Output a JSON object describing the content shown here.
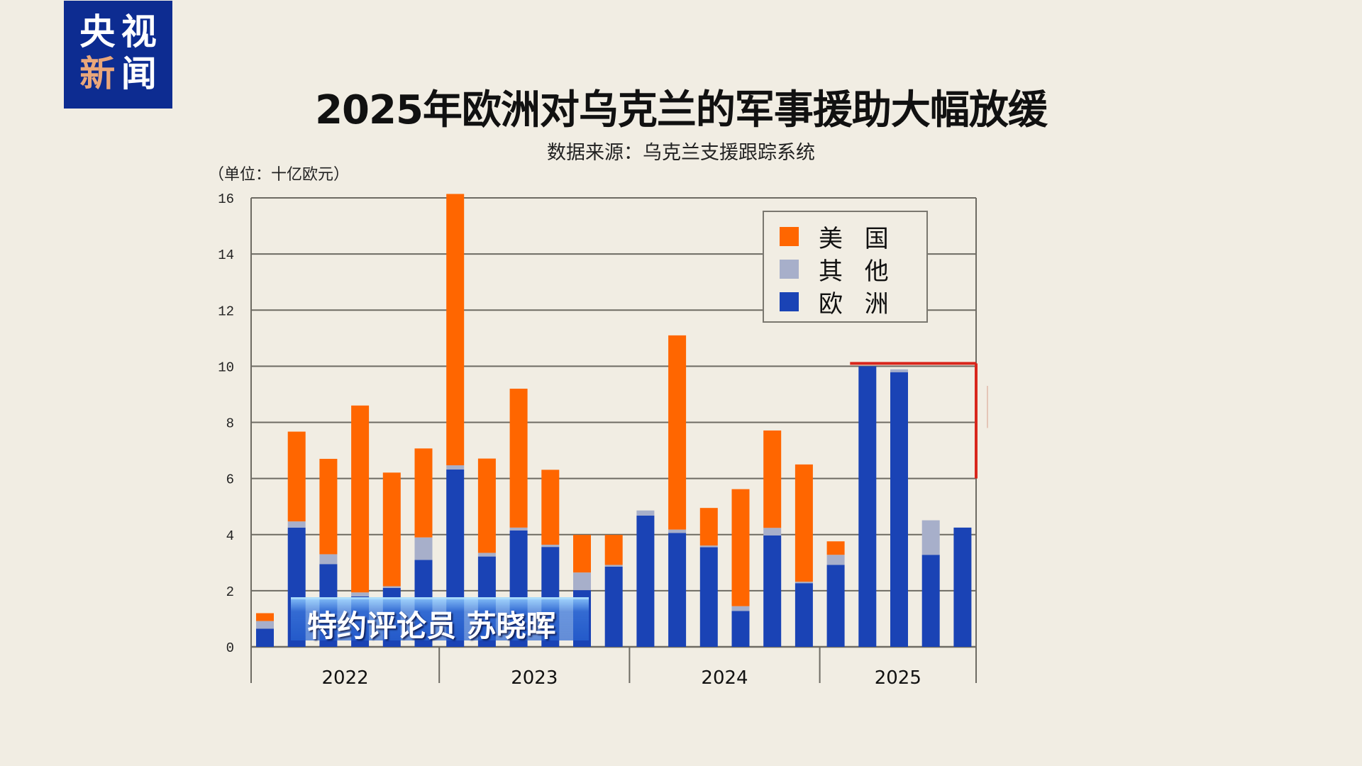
{
  "logo": {
    "line1": [
      "央",
      "视"
    ],
    "line2": [
      "新",
      "闻"
    ]
  },
  "caption": {
    "text": "特约评论员 苏晓晖"
  },
  "colors": {
    "us": "#ff6600",
    "other": "#a7afca",
    "europe": "#1a43b5",
    "annotation": "#d8261c",
    "logo_bg": "#0d2c91"
  },
  "chart_data": {
    "type": "bar",
    "stacked": true,
    "title": "2025年欧洲对乌克兰的军事援助大幅放缓",
    "subtitle": "数据来源：乌克兰支援跟踪系统",
    "ylabel": "（单位：十亿欧元）",
    "xlabel": "",
    "ylim": [
      0,
      16
    ],
    "yticks": [
      0,
      2,
      4,
      6,
      8,
      10,
      12,
      14,
      16
    ],
    "grid": true,
    "legend_position": "top-right",
    "groups": [
      {
        "label": "2022",
        "count": 6
      },
      {
        "label": "2023",
        "count": 6
      },
      {
        "label": "2024",
        "count": 6
      },
      {
        "label": "2025",
        "count": 5
      }
    ],
    "series": [
      {
        "key": "europe",
        "name": "欧 洲",
        "values": [
          0.65,
          4.25,
          2.95,
          1.8,
          2.1,
          3.1,
          6.32,
          3.22,
          4.15,
          3.56,
          2.02,
          2.86,
          4.68,
          4.06,
          3.55,
          1.28,
          3.97,
          2.27,
          2.92,
          10.0,
          9.79,
          3.28,
          4.25
        ]
      },
      {
        "key": "other",
        "name": "其 他",
        "values": [
          0.27,
          0.22,
          0.35,
          0.14,
          0.06,
          0.8,
          0.15,
          0.13,
          0.1,
          0.08,
          0.63,
          0.06,
          0.18,
          0.12,
          0.06,
          0.17,
          0.27,
          0.05,
          0.36,
          0.0,
          0.1,
          1.23,
          0.0
        ]
      },
      {
        "key": "us",
        "name": "美 国",
        "values": [
          0.28,
          3.2,
          3.4,
          6.66,
          4.05,
          3.17,
          9.67,
          3.36,
          4.95,
          2.67,
          1.34,
          1.07,
          0.0,
          6.92,
          1.34,
          4.17,
          3.47,
          4.18,
          0.48,
          0.0,
          0.0,
          0.0,
          0.0
        ]
      }
    ],
    "legend_order": [
      "us",
      "other",
      "europe"
    ],
    "annotation": {
      "type": "bracket",
      "y_level": 10.1,
      "y_bottom": 6.0,
      "from_bar_index": 19,
      "color": "red"
    }
  }
}
